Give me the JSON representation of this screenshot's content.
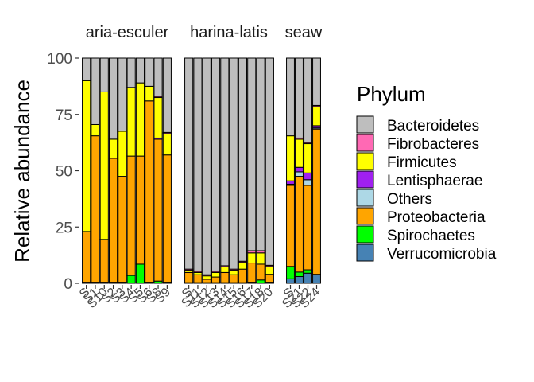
{
  "chart_data": {
    "type": "bar",
    "stacked": true,
    "ylabel": "Relative abundance",
    "xlabel": "",
    "ylim": [
      0,
      100
    ],
    "yticks": [
      "0",
      "25",
      "50",
      "75",
      "100"
    ],
    "legend": {
      "title": "Phylum",
      "placement": "right",
      "entries": [
        {
          "name": "Bacteroidetes",
          "color": "#BEBEBE"
        },
        {
          "name": "Fibrobacteres",
          "color": "#FF69B4"
        },
        {
          "name": "Firmicutes",
          "color": "#FFFF00"
        },
        {
          "name": "Lentisphaerae",
          "color": "#A020F0"
        },
        {
          "name": "Others",
          "color": "#ADD8E6"
        },
        {
          "name": "Proteobacteria",
          "color": "#FFA500"
        },
        {
          "name": "Spirochaetes",
          "color": "#00FF00"
        },
        {
          "name": "Verrucomicrobia",
          "color": "#4682B4"
        }
      ]
    },
    "facets": [
      {
        "label": "aria-esculer",
        "samples": [
          {
            "x": "S",
            "values": {
              "Verrucomicrobia": 0,
              "Spirochaetes": 0.5,
              "Proteobacteria": 22.5,
              "Others": 0,
              "Lentisphaerae": 0,
              "Firmicutes": 67,
              "Fibrobacteres": 0,
              "Bacteroidetes": 10
            }
          },
          {
            "x": "S1",
            "values": {
              "Verrucomicrobia": 0,
              "Spirochaetes": 0.5,
              "Proteobacteria": 65,
              "Others": 0,
              "Lentisphaerae": 0,
              "Firmicutes": 5,
              "Fibrobacteres": 0,
              "Bacteroidetes": 29.5
            }
          },
          {
            "x": "S10",
            "values": {
              "Verrucomicrobia": 0,
              "Spirochaetes": 0.5,
              "Proteobacteria": 19,
              "Others": 0,
              "Lentisphaerae": 0,
              "Firmicutes": 65.5,
              "Fibrobacteres": 0,
              "Bacteroidetes": 15
            }
          },
          {
            "x": "S2",
            "values": {
              "Verrucomicrobia": 0,
              "Spirochaetes": 0.5,
              "Proteobacteria": 55,
              "Others": 0,
              "Lentisphaerae": 0,
              "Firmicutes": 8.5,
              "Fibrobacteres": 0,
              "Bacteroidetes": 36
            }
          },
          {
            "x": "S3",
            "values": {
              "Verrucomicrobia": 0,
              "Spirochaetes": 0.5,
              "Proteobacteria": 47,
              "Others": 0,
              "Lentisphaerae": 0,
              "Firmicutes": 20,
              "Fibrobacteres": 0,
              "Bacteroidetes": 32.5
            }
          },
          {
            "x": "S4",
            "values": {
              "Verrucomicrobia": 0,
              "Spirochaetes": 3.5,
              "Proteobacteria": 53,
              "Others": 0,
              "Lentisphaerae": 0,
              "Firmicutes": 30.5,
              "Fibrobacteres": 0,
              "Bacteroidetes": 13
            }
          },
          {
            "x": "S5",
            "values": {
              "Verrucomicrobia": 0,
              "Spirochaetes": 8.5,
              "Proteobacteria": 48,
              "Others": 0,
              "Lentisphaerae": 0,
              "Firmicutes": 32.5,
              "Fibrobacteres": 0,
              "Bacteroidetes": 11
            }
          },
          {
            "x": "S6",
            "values": {
              "Verrucomicrobia": 0,
              "Spirochaetes": 0.5,
              "Proteobacteria": 80.5,
              "Others": 0,
              "Lentisphaerae": 0,
              "Firmicutes": 6.5,
              "Fibrobacteres": 0,
              "Bacteroidetes": 12.5
            }
          },
          {
            "x": "S8",
            "values": {
              "Verrucomicrobia": 0,
              "Spirochaetes": 1,
              "Proteobacteria": 63,
              "Others": 0,
              "Lentisphaerae": 0.5,
              "Firmicutes": 18,
              "Fibrobacteres": 0.5,
              "Bacteroidetes": 17
            }
          },
          {
            "x": "S9",
            "values": {
              "Verrucomicrobia": 0,
              "Spirochaetes": 0.5,
              "Proteobacteria": 56.5,
              "Others": 0,
              "Lentisphaerae": 0,
              "Firmicutes": 9.5,
              "Fibrobacteres": 0.5,
              "Bacteroidetes": 33
            }
          }
        ]
      },
      {
        "label": "harina-latis",
        "samples": [
          {
            "x": "S",
            "values": {
              "Verrucomicrobia": 0,
              "Spirochaetes": 0.3,
              "Proteobacteria": 4.5,
              "Others": 0,
              "Lentisphaerae": 0,
              "Firmicutes": 1,
              "Fibrobacteres": 0.5,
              "Bacteroidetes": 93.7
            }
          },
          {
            "x": "S11",
            "values": {
              "Verrucomicrobia": 0,
              "Spirochaetes": 0.3,
              "Proteobacteria": 3.5,
              "Others": 0,
              "Lentisphaerae": 0,
              "Firmicutes": 1,
              "Fibrobacteres": 0.5,
              "Bacteroidetes": 94.7
            }
          },
          {
            "x": "S12",
            "values": {
              "Verrucomicrobia": 0,
              "Spirochaetes": 0.3,
              "Proteobacteria": 1.5,
              "Others": 0,
              "Lentisphaerae": 0,
              "Firmicutes": 1.5,
              "Fibrobacteres": 0.5,
              "Bacteroidetes": 96.2
            }
          },
          {
            "x": "S13",
            "values": {
              "Verrucomicrobia": 0,
              "Spirochaetes": 0.3,
              "Proteobacteria": 2.5,
              "Others": 0,
              "Lentisphaerae": 0,
              "Firmicutes": 2,
              "Fibrobacteres": 0.5,
              "Bacteroidetes": 94.7
            }
          },
          {
            "x": "S14",
            "values": {
              "Verrucomicrobia": 0,
              "Spirochaetes": 0.3,
              "Proteobacteria": 4.5,
              "Others": 0,
              "Lentisphaerae": 0,
              "Firmicutes": 2.5,
              "Fibrobacteres": 0.5,
              "Bacteroidetes": 92.2
            }
          },
          {
            "x": "S15",
            "values": {
              "Verrucomicrobia": 0,
              "Spirochaetes": 0.3,
              "Proteobacteria": 3.5,
              "Others": 0,
              "Lentisphaerae": 0,
              "Firmicutes": 2,
              "Fibrobacteres": 0.5,
              "Bacteroidetes": 93.7
            }
          },
          {
            "x": "S16",
            "values": {
              "Verrucomicrobia": 0,
              "Spirochaetes": 0.3,
              "Proteobacteria": 6,
              "Others": 0,
              "Lentisphaerae": 0,
              "Firmicutes": 3,
              "Fibrobacteres": 0.5,
              "Bacteroidetes": 90.2
            }
          },
          {
            "x": "S17",
            "values": {
              "Verrucomicrobia": 0,
              "Spirochaetes": 0.5,
              "Proteobacteria": 8.5,
              "Others": 0,
              "Lentisphaerae": 0,
              "Firmicutes": 4.5,
              "Fibrobacteres": 1,
              "Bacteroidetes": 85.5
            }
          },
          {
            "x": "S18",
            "values": {
              "Verrucomicrobia": 0,
              "Spirochaetes": 1.5,
              "Proteobacteria": 7,
              "Others": 0,
              "Lentisphaerae": 0,
              "Firmicutes": 5,
              "Fibrobacteres": 1,
              "Bacteroidetes": 85.5
            }
          },
          {
            "x": "S20",
            "values": {
              "Verrucomicrobia": 0,
              "Spirochaetes": 0.5,
              "Proteobacteria": 3.5,
              "Others": 0,
              "Lentisphaerae": 0,
              "Firmicutes": 3.5,
              "Fibrobacteres": 0.5,
              "Bacteroidetes": 92
            }
          }
        ]
      },
      {
        "label": "seaw",
        "samples": [
          {
            "x": "S",
            "values": {
              "Verrucomicrobia": 2,
              "Spirochaetes": 5.5,
              "Proteobacteria": 36,
              "Others": 0.5,
              "Lentisphaerae": 1.5,
              "Firmicutes": 20,
              "Fibrobacteres": 0,
              "Bacteroidetes": 34.5
            }
          },
          {
            "x": "S21",
            "values": {
              "Verrucomicrobia": 3,
              "Spirochaetes": 2,
              "Proteobacteria": 42.5,
              "Others": 2,
              "Lentisphaerae": 2,
              "Firmicutes": 12.5,
              "Fibrobacteres": 0.5,
              "Bacteroidetes": 35.5
            }
          },
          {
            "x": "S22",
            "values": {
              "Verrucomicrobia": 4.5,
              "Spirochaetes": 1.5,
              "Proteobacteria": 37.5,
              "Others": 2.5,
              "Lentisphaerae": 3,
              "Firmicutes": 13,
              "Fibrobacteres": 0.5,
              "Bacteroidetes": 37.5
            }
          },
          {
            "x": "S24",
            "values": {
              "Verrucomicrobia": 4,
              "Spirochaetes": 0,
              "Proteobacteria": 64.5,
              "Others": 0.5,
              "Lentisphaerae": 1,
              "Firmicutes": 8.5,
              "Fibrobacteres": 0.5,
              "Bacteroidetes": 21
            }
          }
        ]
      }
    ]
  }
}
